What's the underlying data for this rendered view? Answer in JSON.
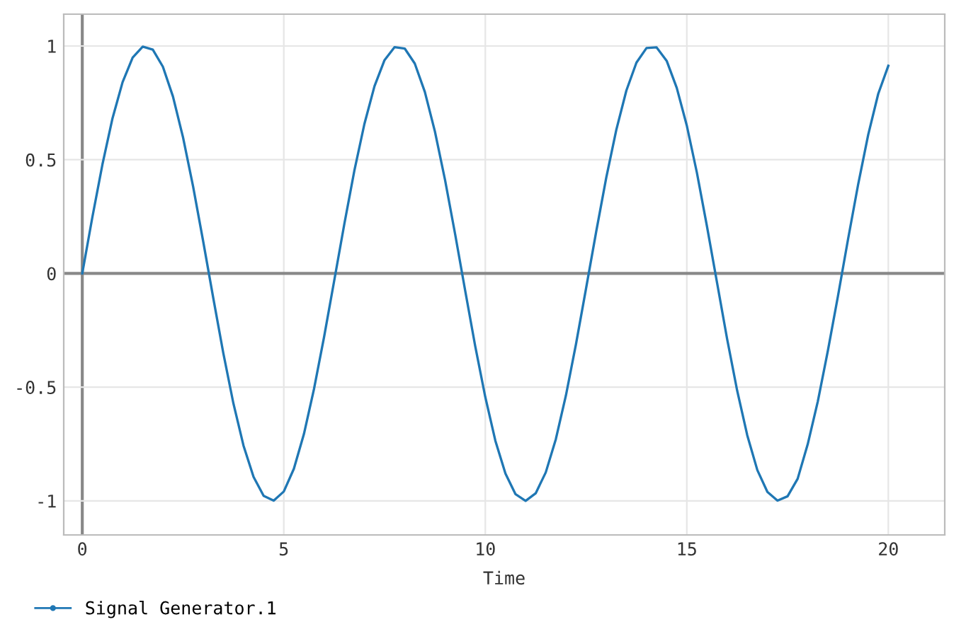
{
  "chart_data": {
    "type": "line",
    "xlabel": "Time",
    "x": [
      0,
      0.25,
      0.5,
      0.75,
      1,
      1.25,
      1.5,
      1.75,
      2,
      2.25,
      2.5,
      2.75,
      3,
      3.25,
      3.5,
      3.75,
      4,
      4.25,
      4.5,
      4.75,
      5,
      5.25,
      5.5,
      5.75,
      6,
      6.25,
      6.5,
      6.75,
      7,
      7.25,
      7.5,
      7.75,
      8,
      8.25,
      8.5,
      8.75,
      9,
      9.25,
      9.5,
      9.75,
      10,
      10.25,
      10.5,
      10.75,
      11,
      11.25,
      11.5,
      11.75,
      12,
      12.25,
      12.5,
      12.75,
      13,
      13.25,
      13.5,
      13.75,
      14,
      14.25,
      14.5,
      14.75,
      15,
      15.25,
      15.5,
      15.75,
      16,
      16.25,
      16.5,
      16.75,
      17,
      17.25,
      17.5,
      17.75,
      18,
      18.25,
      18.5,
      18.75,
      19,
      19.25,
      19.5,
      19.75,
      20
    ],
    "series": [
      {
        "name": "Signal Generator.1",
        "color": "#1f77b4",
        "values": [
          0,
          0.247,
          0.479,
          0.682,
          0.841,
          0.949,
          0.997,
          0.984,
          0.909,
          0.778,
          0.598,
          0.382,
          0.141,
          -0.108,
          -0.351,
          -0.572,
          -0.757,
          -0.895,
          -0.978,
          -0.999,
          -0.959,
          -0.859,
          -0.706,
          -0.508,
          -0.279,
          -0.033,
          0.215,
          0.451,
          0.657,
          0.823,
          0.938,
          0.995,
          0.989,
          0.923,
          0.798,
          0.624,
          0.412,
          0.174,
          -0.075,
          -0.32,
          -0.544,
          -0.736,
          -0.88,
          -0.971,
          -1.0,
          -0.967,
          -0.875,
          -0.729,
          -0.537,
          -0.311,
          -0.066,
          0.182,
          0.42,
          0.631,
          0.804,
          0.927,
          0.991,
          0.994,
          0.935,
          0.816,
          0.65,
          0.443,
          0.207,
          -0.041,
          -0.288,
          -0.516,
          -0.712,
          -0.865,
          -0.961,
          -0.999,
          -0.98,
          -0.903,
          -0.751,
          -0.563,
          -0.34,
          -0.1,
          0.15,
          0.39,
          0.609,
          0.79,
          0.913
        ]
      }
    ],
    "xlim": [
      -0.46,
      21.4
    ],
    "ylim": [
      -1.15,
      1.14
    ],
    "xticks": [
      0,
      5,
      10,
      15,
      20
    ],
    "yticks": [
      -1,
      -0.5,
      0,
      0.5,
      1
    ],
    "grid": true,
    "legend": "bottom left",
    "line_style": "solid"
  }
}
